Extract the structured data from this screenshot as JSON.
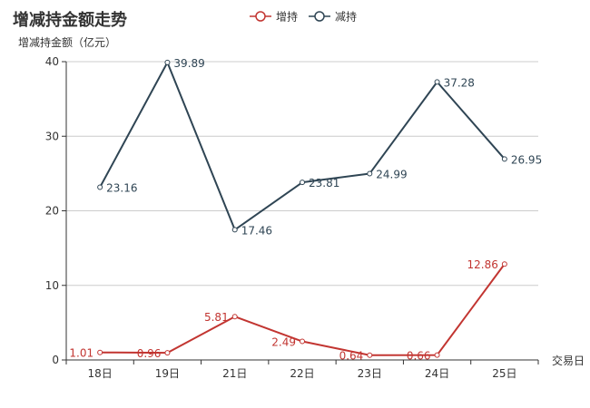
{
  "chart_data": {
    "type": "line",
    "title": "增减持金额走势",
    "ylabel": "增减持金额（亿元）",
    "xlabel": "交易日",
    "categories": [
      "18日",
      "19日",
      "21日",
      "22日",
      "23日",
      "24日",
      "25日"
    ],
    "ylim": [
      0,
      40
    ],
    "yticks": [
      0,
      10,
      20,
      30,
      40
    ],
    "grid": true,
    "legend_position": "top-center",
    "series": [
      {
        "name": "增持",
        "color": "#c23531",
        "values": [
          1.01,
          0.96,
          5.81,
          2.49,
          0.64,
          0.66,
          12.86
        ],
        "labels": [
          "1.01",
          "0.96",
          "5.81",
          "2.49",
          "0.64",
          "0.66",
          "12.86"
        ]
      },
      {
        "name": "减持",
        "color": "#2f4554",
        "values": [
          23.16,
          39.89,
          17.46,
          23.81,
          24.99,
          37.28,
          26.95
        ],
        "labels": [
          "23.16",
          "39.89",
          "17.46",
          "23.81",
          "24.99",
          "37.28",
          "26.95"
        ]
      }
    ]
  }
}
